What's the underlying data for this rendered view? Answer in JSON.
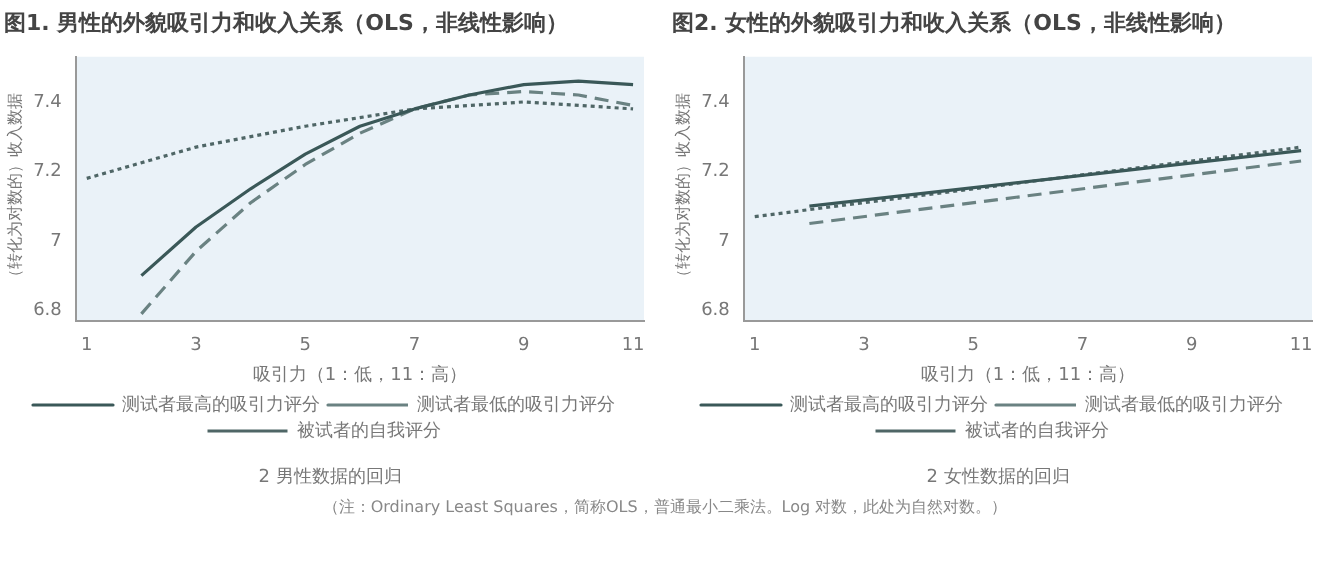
{
  "chart_data": [
    {
      "type": "line",
      "title": "图1. 男性的外貌吸引力和收入关系（OLS，非线性影响）",
      "xlabel": "吸引力（1：低，11：高）",
      "ylabel": "（转化为对数的）收入数据",
      "xlim": [
        0.8,
        11.2
      ],
      "xticks": [
        1,
        3,
        5,
        7,
        9,
        11
      ],
      "ylim": [
        6.77,
        7.53
      ],
      "yticks": [
        {
          "value": 6.8,
          "label": "6.8"
        },
        {
          "value": 7,
          "label": "7"
        },
        {
          "value": 7.2,
          "label": "7.2"
        },
        {
          "value": 7.4,
          "label": "7.4"
        }
      ],
      "grid": false,
      "legend": "bottom",
      "marker": "none",
      "series": [
        {
          "name": "测试者最高的吸引力评分",
          "color": "#3a5858",
          "line_style": "solid",
          "x": [
            2,
            3,
            4,
            5,
            6,
            7,
            8,
            9,
            10,
            11
          ],
          "values": [
            6.9,
            7.04,
            7.15,
            7.25,
            7.33,
            7.38,
            7.42,
            7.45,
            7.46,
            7.45
          ]
        },
        {
          "name": "测试者最低的吸引力评分",
          "color": "#6a8282",
          "line_style": "dashed",
          "x": [
            2,
            3,
            4,
            5,
            6,
            7,
            8,
            9,
            10,
            11
          ],
          "values": [
            6.79,
            6.97,
            7.11,
            7.22,
            7.31,
            7.38,
            7.42,
            7.43,
            7.42,
            7.39
          ]
        },
        {
          "name": "被试者的自我评分",
          "color": "#4f6666",
          "line_style": "dotted",
          "x": [
            1,
            3,
            5,
            7,
            9,
            11
          ],
          "values": [
            7.18,
            7.27,
            7.33,
            7.38,
            7.4,
            7.38
          ]
        }
      ],
      "annotations": [
        "2  男性数据的回归",
        "（注：Ordinary Least Squares，简称OLS，普通最小二乘法。Log 对数，此处为自然对数。）"
      ]
    },
    {
      "type": "line",
      "title": "图2. 女性的外貌吸引力和收入关系（OLS，非线性影响）",
      "xlabel": "吸引力（1：低，11：高）",
      "ylabel": "（转化为对数的）收入数据",
      "xlim": [
        0.8,
        11.2
      ],
      "xticks": [
        1,
        3,
        5,
        7,
        9,
        11
      ],
      "ylim": [
        6.77,
        7.53
      ],
      "yticks": [
        {
          "value": 6.8,
          "label": "6.8"
        },
        {
          "value": 7,
          "label": "7"
        },
        {
          "value": 7.2,
          "label": "7.2"
        },
        {
          "value": 7.4,
          "label": "7.4"
        }
      ],
      "grid": false,
      "legend": "bottom",
      "marker": "none",
      "series": [
        {
          "name": "测试者最高的吸引力评分",
          "color": "#3a5858",
          "line_style": "solid",
          "x": [
            2,
            11
          ],
          "values": [
            7.1,
            7.26
          ]
        },
        {
          "name": "测试者最低的吸引力评分",
          "color": "#6a8282",
          "line_style": "dashed",
          "x": [
            2,
            11
          ],
          "values": [
            7.05,
            7.23
          ]
        },
        {
          "name": "被试者的自我评分",
          "color": "#4f6666",
          "line_style": "dotted",
          "x": [
            1,
            11
          ],
          "values": [
            7.07,
            7.27
          ]
        }
      ],
      "annotations": [
        "2  女性数据的回归"
      ]
    }
  ]
}
